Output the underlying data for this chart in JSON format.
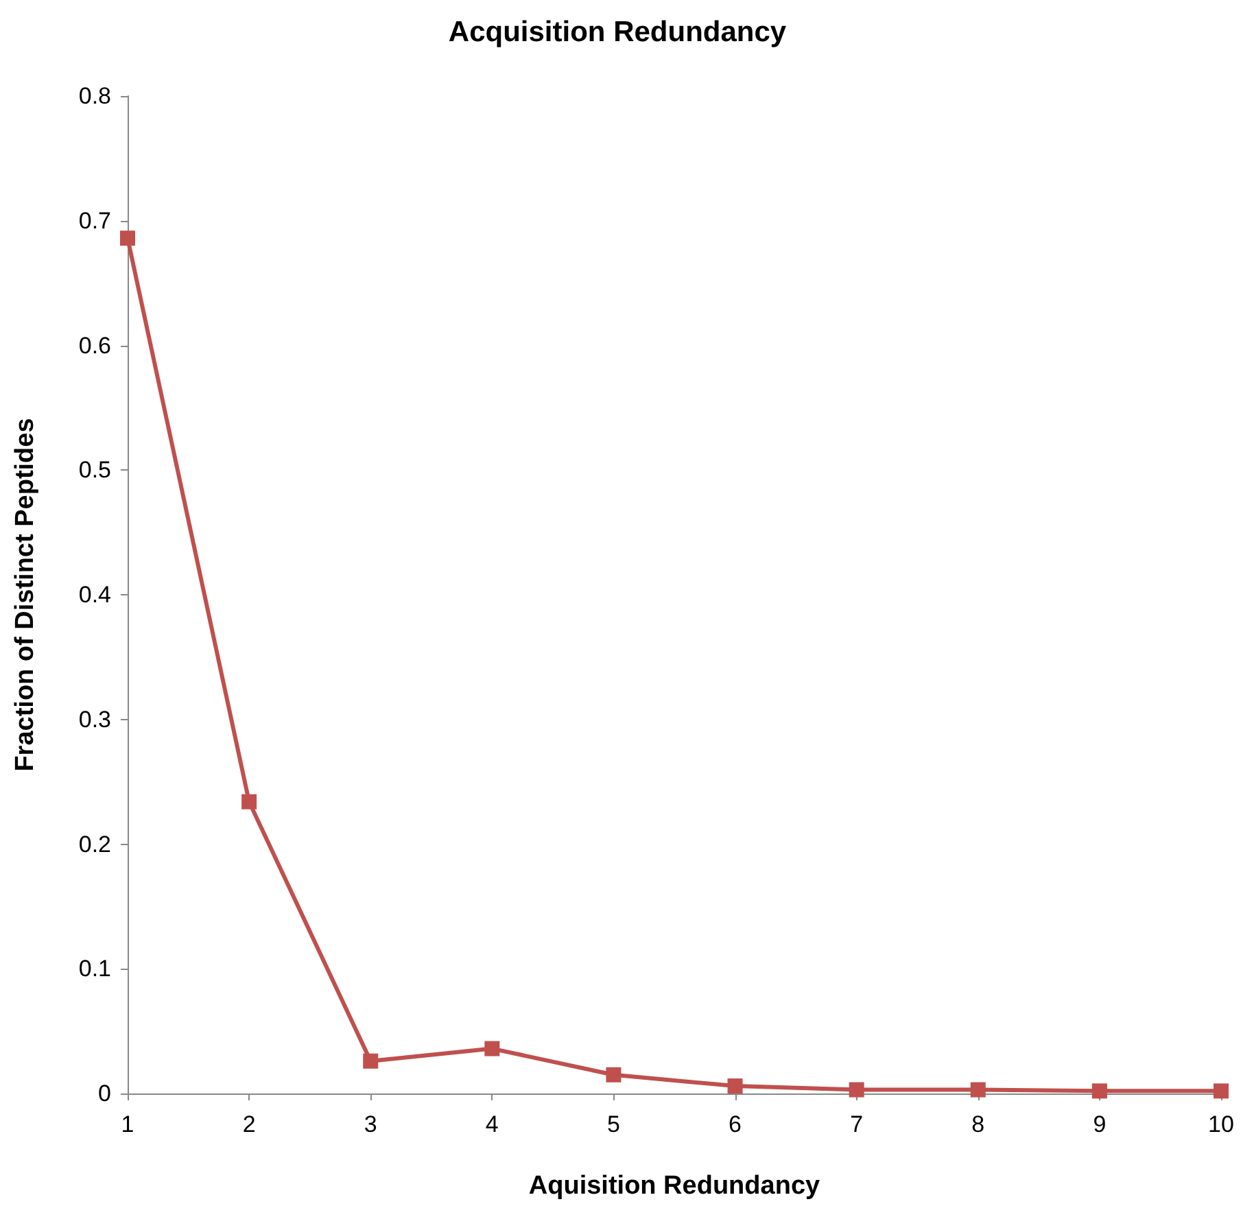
{
  "chart_data": {
    "type": "line",
    "title": "Acquisition Redundancy",
    "xlabel": "Aquisition Redundancy",
    "ylabel": "Fraction of Distinct Peptides",
    "categories": [
      "1",
      "2",
      "3",
      "4",
      "5",
      "6",
      "7",
      "8",
      "9",
      "10"
    ],
    "series": [
      {
        "color": "#c0504d",
        "values": [
          0.686,
          0.234,
          0.026,
          0.036,
          0.015,
          0.006,
          0.003,
          0.003,
          0.002,
          0.002
        ]
      }
    ],
    "ylim": [
      0,
      0.8
    ],
    "yticks": [
      0,
      0.1,
      0.2,
      0.3,
      0.4,
      0.5,
      0.6,
      0.7,
      0.8
    ],
    "grid": false,
    "marker": "square",
    "line_style": "solid"
  }
}
